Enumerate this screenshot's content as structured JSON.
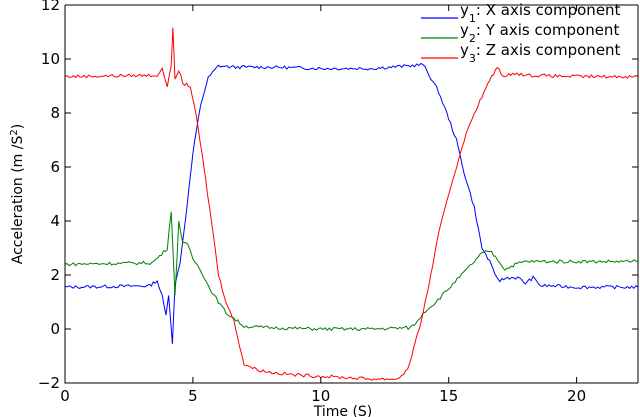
{
  "chart_data": {
    "type": "line",
    "title": "",
    "xlabel": "Time (S)",
    "ylabel": "Acceleration (m /S²)",
    "xlim": [
      0,
      22.4
    ],
    "ylim": [
      -2,
      12
    ],
    "grid": false,
    "legend_position": "top-right",
    "x_ticks": [
      0,
      5,
      10,
      15,
      20
    ],
    "y_ticks": [
      -2,
      0,
      2,
      4,
      6,
      8,
      10,
      12
    ],
    "series": [
      {
        "name": "y1: X axis component",
        "sub": "1",
        "label": ": X axis component",
        "color": "#0000ff",
        "x": [
          0,
          3.3,
          3.6,
          3.8,
          3.95,
          4.05,
          4.2,
          4.3,
          4.5,
          4.7,
          5.0,
          5.3,
          5.6,
          6.0,
          6.5,
          8,
          10,
          12,
          13.5,
          14.0,
          14.3,
          14.6,
          15.0,
          15.3,
          15.6,
          16.0,
          16.3,
          16.6,
          16.8,
          17.0,
          17.3,
          17.7,
          18.0,
          18.3,
          18.6,
          19.0,
          20,
          22.4
        ],
        "values": [
          1.55,
          1.6,
          1.8,
          1.2,
          0.5,
          1.3,
          -0.5,
          1.6,
          2.5,
          4.0,
          6.5,
          8.3,
          9.3,
          9.75,
          9.7,
          9.7,
          9.65,
          9.65,
          9.75,
          9.8,
          9.3,
          8.8,
          7.8,
          7.0,
          5.8,
          4.5,
          3.0,
          2.5,
          2.0,
          1.8,
          1.9,
          1.9,
          1.7,
          1.9,
          1.6,
          1.6,
          1.55,
          1.55
        ]
      },
      {
        "name": "y2: Y axis component",
        "sub": "2",
        "label": ": Y axis component",
        "color": "#007f00",
        "x": [
          0,
          3.4,
          3.7,
          4.0,
          4.15,
          4.3,
          4.45,
          4.6,
          4.8,
          5.0,
          5.3,
          5.6,
          6.0,
          6.3,
          6.6,
          7.0,
          8,
          10,
          12,
          13.5,
          13.8,
          14.0,
          14.5,
          15.0,
          15.5,
          16.0,
          16.3,
          16.6,
          16.9,
          17.2,
          17.6,
          18.0,
          19,
          20,
          22.4
        ],
        "values": [
          2.4,
          2.45,
          2.7,
          3.0,
          4.4,
          1.2,
          4.0,
          3.2,
          3.1,
          2.6,
          2.2,
          1.6,
          1.0,
          0.6,
          0.4,
          0.1,
          0.05,
          0.0,
          0.0,
          0.05,
          0.3,
          0.6,
          1.0,
          1.5,
          2.0,
          2.5,
          2.8,
          2.9,
          2.6,
          2.2,
          2.4,
          2.5,
          2.5,
          2.5,
          2.5
        ]
      },
      {
        "name": "y3: Z axis component",
        "sub": "3",
        "label": ": Z axis component",
        "color": "#ff0000",
        "x": [
          0,
          3.6,
          3.8,
          4.0,
          4.15,
          4.22,
          4.3,
          4.45,
          4.6,
          4.9,
          5.2,
          5.5,
          5.8,
          6.0,
          6.3,
          6.6,
          7.0,
          7.5,
          8,
          9,
          10,
          11,
          12,
          13,
          13.4,
          13.7,
          14.0,
          14.3,
          14.6,
          15.0,
          15.3,
          15.6,
          16.0,
          16.3,
          16.6,
          16.9,
          17.2,
          17.5,
          18,
          20,
          22.4
        ],
        "values": [
          9.35,
          9.4,
          9.6,
          9.0,
          9.8,
          11.1,
          9.2,
          9.6,
          9.1,
          9.0,
          7.5,
          5.5,
          3.5,
          2.0,
          1.0,
          0.3,
          -1.3,
          -1.5,
          -1.6,
          -1.7,
          -1.75,
          -1.8,
          -1.85,
          -1.85,
          -1.5,
          -0.5,
          0.6,
          2.0,
          3.5,
          5.0,
          6.0,
          7.0,
          8.0,
          8.6,
          9.2,
          9.7,
          9.3,
          9.5,
          9.4,
          9.35,
          9.35
        ]
      }
    ]
  },
  "axes": {
    "xlabel": "Time (S)",
    "ylabel_prefix": "Acceleration (m /S",
    "ylabel_sup": "2",
    "ylabel_suffix": ")",
    "x_tick_labels": [
      "0",
      "5",
      "10",
      "15",
      "20"
    ],
    "y_tick_labels": [
      "−2",
      "0",
      "2",
      "4",
      "6",
      "8",
      "10",
      "12"
    ]
  }
}
